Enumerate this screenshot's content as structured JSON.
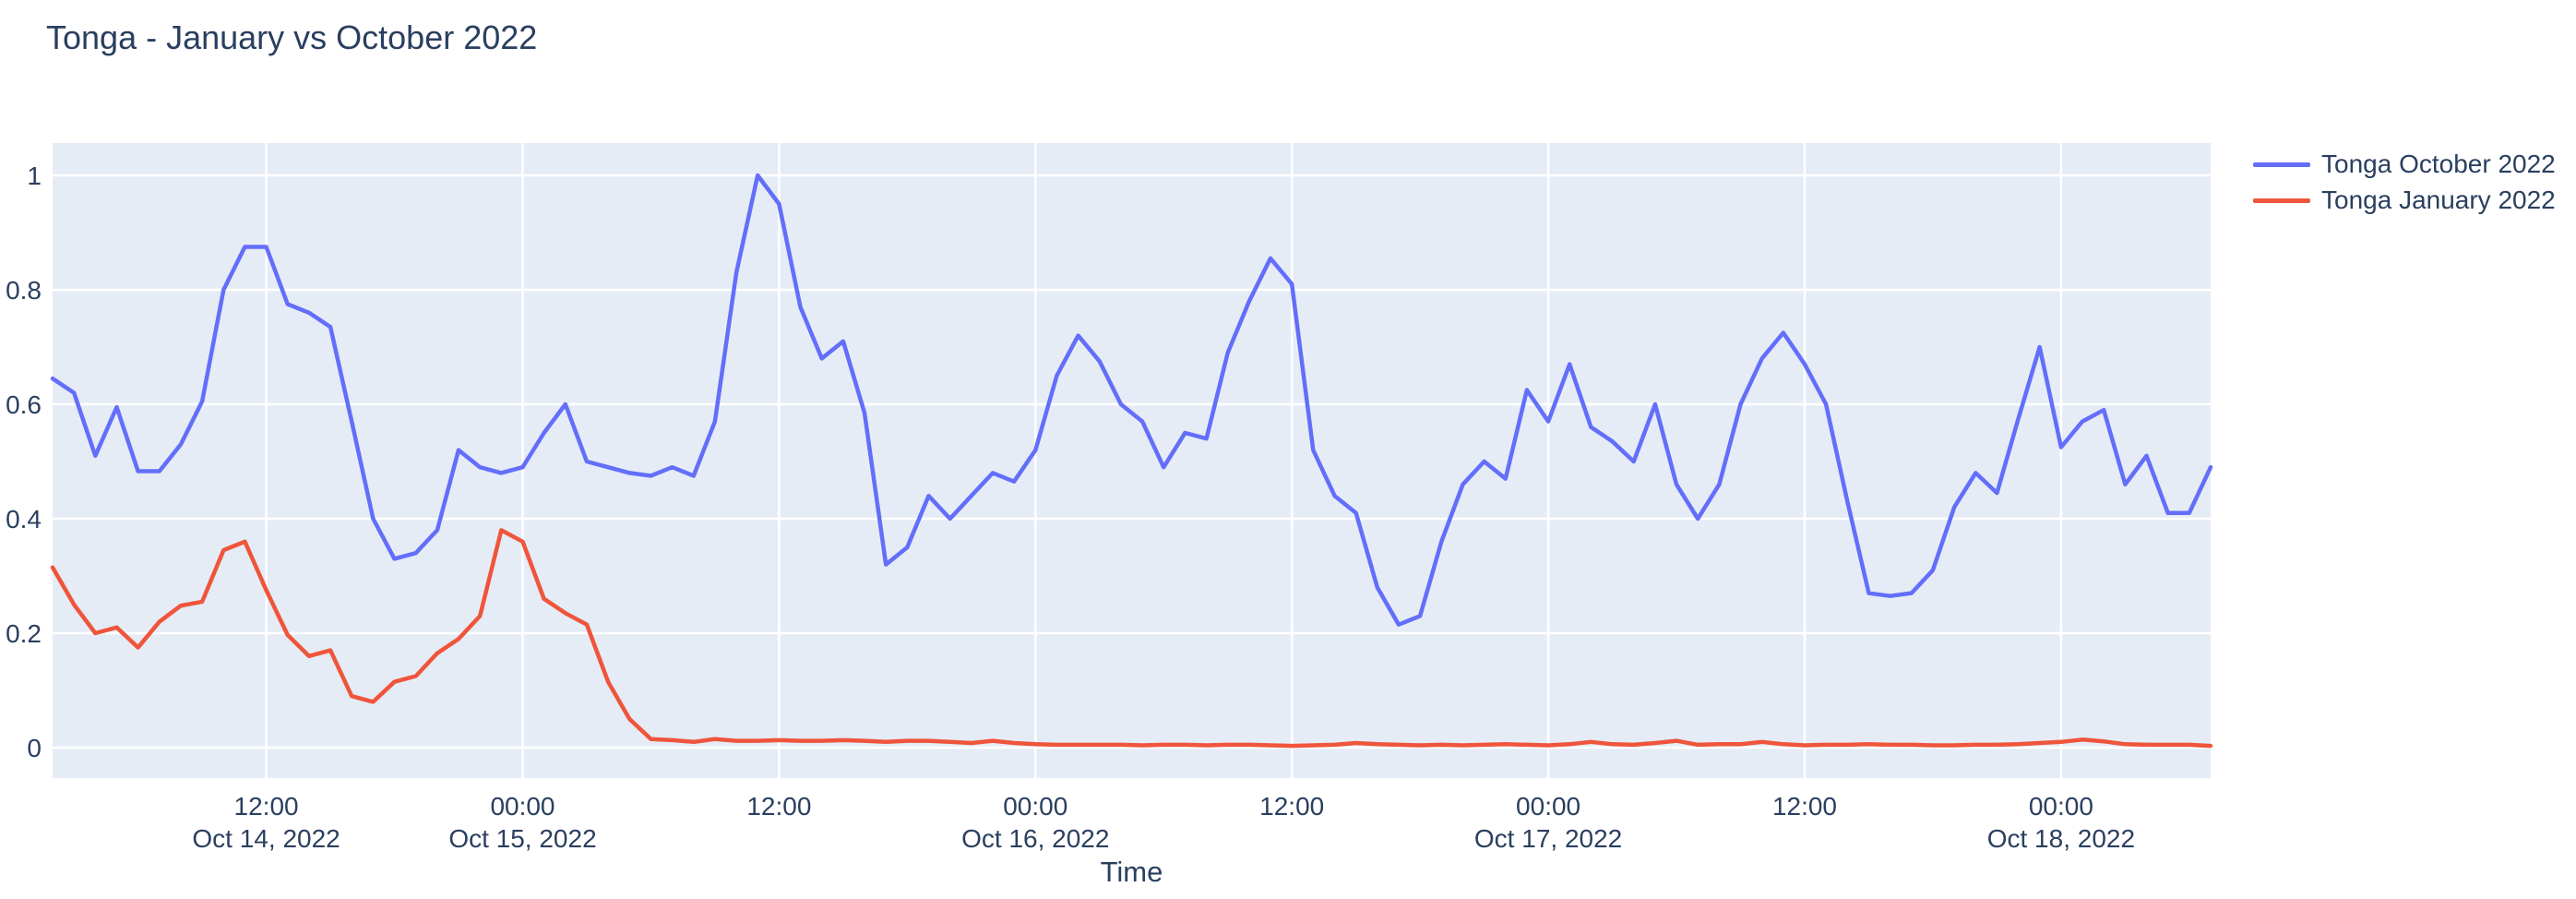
{
  "title": "Tonga - January vs October 2022",
  "colors": {
    "background": "#ffffff",
    "plot_background": "#e5ecf6",
    "gridline": "#ffffff",
    "text": "#2a3f5f",
    "series_october": "#636efa",
    "series_january": "#ef553b"
  },
  "legend": {
    "items": [
      {
        "label": "Tonga October 2022",
        "color": "#636efa"
      },
      {
        "label": "Tonga January 2022",
        "color": "#ef553b"
      }
    ]
  },
  "chart_data": {
    "type": "line",
    "title": "Tonga - January vs October 2022",
    "xlabel": "Time",
    "ylabel": "",
    "x_start": "2022-10-14 02:00",
    "x_interval": "1 hour",
    "x_end": "2022-10-18 07:00",
    "grid": true,
    "legend_position": "right",
    "ylim": [
      -0.055,
      1.055
    ],
    "y_ticks": [
      "0",
      "0.2",
      "0.4",
      "0.6",
      "0.8",
      "1"
    ],
    "x_ticks": [
      {
        "label": "12:00",
        "sublabel": "Oct 14, 2022",
        "hour_index": 10
      },
      {
        "label": "00:00",
        "sublabel": "Oct 15, 2022",
        "hour_index": 22
      },
      {
        "label": "12:00",
        "sublabel": "",
        "hour_index": 34
      },
      {
        "label": "00:00",
        "sublabel": "Oct 16, 2022",
        "hour_index": 46
      },
      {
        "label": "12:00",
        "sublabel": "",
        "hour_index": 58
      },
      {
        "label": "00:00",
        "sublabel": "Oct 17, 2022",
        "hour_index": 70
      },
      {
        "label": "12:00",
        "sublabel": "",
        "hour_index": 82
      },
      {
        "label": "00:00",
        "sublabel": "Oct 18, 2022",
        "hour_index": 94
      }
    ],
    "series": [
      {
        "name": "Tonga October 2022",
        "color": "#636efa",
        "values": [
          0.645,
          0.62,
          0.51,
          0.595,
          0.483,
          0.483,
          0.53,
          0.605,
          0.8,
          0.875,
          0.875,
          0.775,
          0.76,
          0.735,
          0.57,
          0.4,
          0.33,
          0.34,
          0.38,
          0.52,
          0.49,
          0.48,
          0.49,
          0.55,
          0.6,
          0.5,
          0.49,
          0.48,
          0.475,
          0.49,
          0.475,
          0.57,
          0.83,
          1.0,
          0.95,
          0.77,
          0.68,
          0.71,
          0.585,
          0.32,
          0.35,
          0.44,
          0.4,
          0.44,
          0.48,
          0.465,
          0.52,
          0.65,
          0.72,
          0.675,
          0.6,
          0.57,
          0.49,
          0.55,
          0.54,
          0.69,
          0.78,
          0.855,
          0.81,
          0.52,
          0.44,
          0.41,
          0.28,
          0.215,
          0.23,
          0.36,
          0.46,
          0.5,
          0.47,
          0.625,
          0.57,
          0.67,
          0.56,
          0.535,
          0.5,
          0.6,
          0.46,
          0.4,
          0.46,
          0.6,
          0.68,
          0.725,
          0.67,
          0.6,
          0.43,
          0.27,
          0.265,
          0.27,
          0.31,
          0.42,
          0.48,
          0.445,
          0.575,
          0.7,
          0.525,
          0.57,
          0.59,
          0.46,
          0.51,
          0.41,
          0.41,
          0.49
        ]
      },
      {
        "name": "Tonga January 2022",
        "color": "#ef553b",
        "values": [
          0.315,
          0.25,
          0.2,
          0.21,
          0.175,
          0.22,
          0.248,
          0.255,
          0.345,
          0.36,
          0.275,
          0.197,
          0.16,
          0.17,
          0.09,
          0.08,
          0.115,
          0.125,
          0.165,
          0.19,
          0.23,
          0.38,
          0.36,
          0.26,
          0.235,
          0.215,
          0.115,
          0.05,
          0.015,
          0.013,
          0.01,
          0.015,
          0.012,
          0.012,
          0.013,
          0.012,
          0.012,
          0.013,
          0.012,
          0.01,
          0.012,
          0.012,
          0.01,
          0.008,
          0.012,
          0.008,
          0.006,
          0.005,
          0.005,
          0.005,
          0.005,
          0.004,
          0.005,
          0.005,
          0.004,
          0.005,
          0.005,
          0.004,
          0.003,
          0.004,
          0.005,
          0.008,
          0.006,
          0.005,
          0.004,
          0.005,
          0.004,
          0.005,
          0.006,
          0.005,
          0.004,
          0.006,
          0.01,
          0.006,
          0.005,
          0.008,
          0.012,
          0.005,
          0.006,
          0.006,
          0.01,
          0.006,
          0.004,
          0.005,
          0.005,
          0.006,
          0.005,
          0.005,
          0.004,
          0.004,
          0.005,
          0.005,
          0.006,
          0.008,
          0.01,
          0.014,
          0.011,
          0.006,
          0.005,
          0.005,
          0.005,
          0.003
        ]
      }
    ]
  }
}
